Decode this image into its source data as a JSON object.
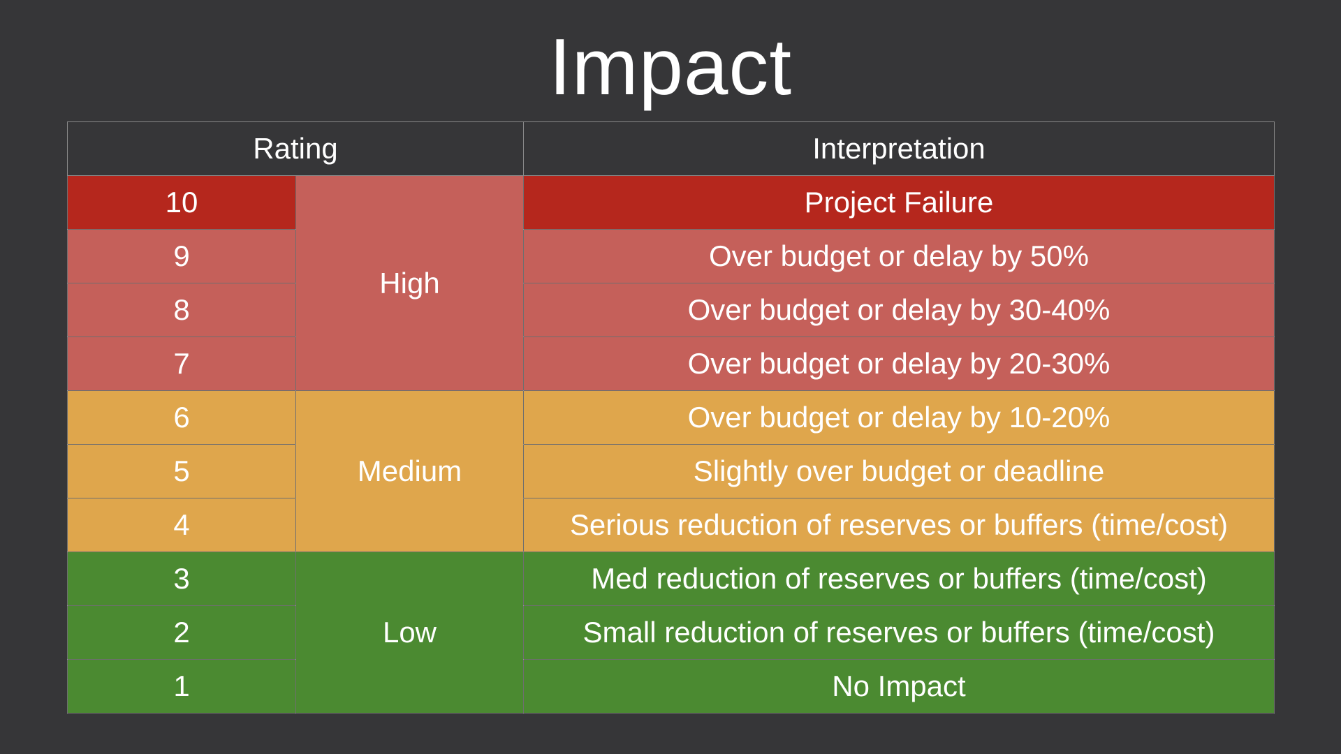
{
  "title": "Impact",
  "table": {
    "headers": {
      "rating": "Rating",
      "interpretation": "Interpretation"
    },
    "levels": {
      "high": "High",
      "medium": "Medium",
      "low": "Low"
    },
    "rows": [
      {
        "rating": "10",
        "interpretation": "Project Failure"
      },
      {
        "rating": "9",
        "interpretation": "Over budget or delay by 50%"
      },
      {
        "rating": "8",
        "interpretation": "Over budget or delay by 30-40%"
      },
      {
        "rating": "7",
        "interpretation": "Over budget or delay by 20-30%"
      },
      {
        "rating": "6",
        "interpretation": "Over budget or delay by 10-20%"
      },
      {
        "rating": "5",
        "interpretation": "Slightly over budget or deadline"
      },
      {
        "rating": "4",
        "interpretation": "Serious reduction of reserves or buffers (time/cost)"
      },
      {
        "rating": "3",
        "interpretation": "Med reduction of reserves or buffers (time/cost)"
      },
      {
        "rating": "2",
        "interpretation": "Small reduction of reserves or buffers (time/cost)"
      },
      {
        "rating": "1",
        "interpretation": "No Impact"
      }
    ]
  },
  "colors": {
    "background": "#363638",
    "critical": "#b5271d",
    "high": "#c5605a",
    "medium": "#dfa64c",
    "low": "#4b8a31"
  }
}
